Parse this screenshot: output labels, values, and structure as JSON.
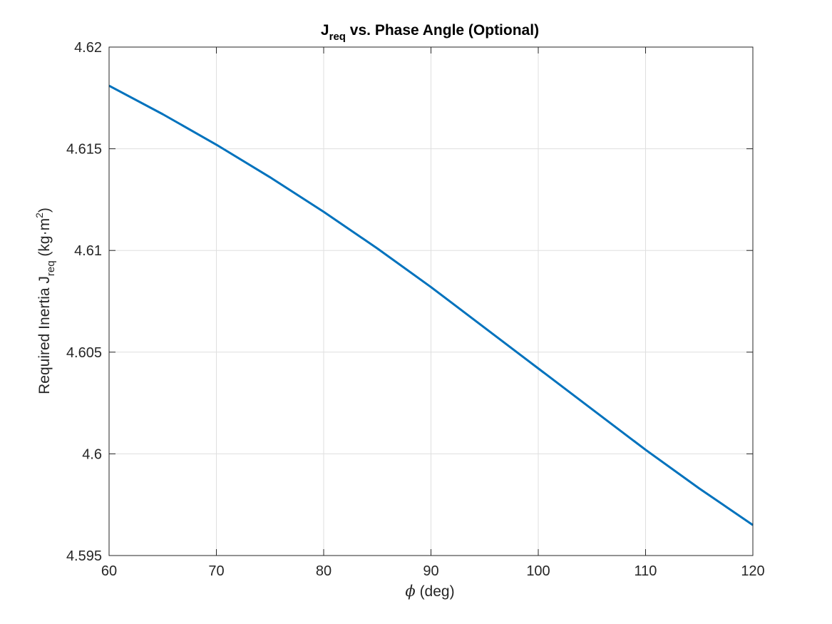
{
  "chart_data": {
    "type": "line",
    "title": {
      "main": "J",
      "sub": "req",
      "rest": " vs. Phase Angle (Optional)"
    },
    "xlabel": {
      "symbol": "ϕ",
      "rest": " (deg)"
    },
    "ylabel": {
      "prefix": "Required Inertia J",
      "sub": "req",
      "unit_open": " (kg·m",
      "sup": "2",
      "unit_close": ")"
    },
    "xlim": [
      60,
      120
    ],
    "ylim": [
      4.595,
      4.62
    ],
    "x_ticks": [
      60,
      70,
      80,
      90,
      100,
      110,
      120
    ],
    "x_tick_labels": [
      "60",
      "70",
      "80",
      "90",
      "100",
      "110",
      "120"
    ],
    "y_ticks": [
      4.595,
      4.6,
      4.605,
      4.61,
      4.615,
      4.62
    ],
    "y_tick_labels": [
      "4.595",
      "4.6",
      "4.605",
      "4.61",
      "4.615",
      "4.62"
    ],
    "grid": true,
    "box": true,
    "series": [
      {
        "color": "#0072BD",
        "x": [
          60,
          65,
          70,
          75,
          80,
          85,
          90,
          95,
          100,
          105,
          110,
          115,
          120
        ],
        "y": [
          4.6181,
          4.6167,
          4.6152,
          4.6136,
          4.6119,
          4.6101,
          4.6082,
          4.6062,
          4.6042,
          4.6022,
          4.6002,
          4.5983,
          4.5965
        ]
      }
    ],
    "colors": {
      "axis": "#262626",
      "grid": "#dfdfdf",
      "background": "#ffffff"
    }
  }
}
